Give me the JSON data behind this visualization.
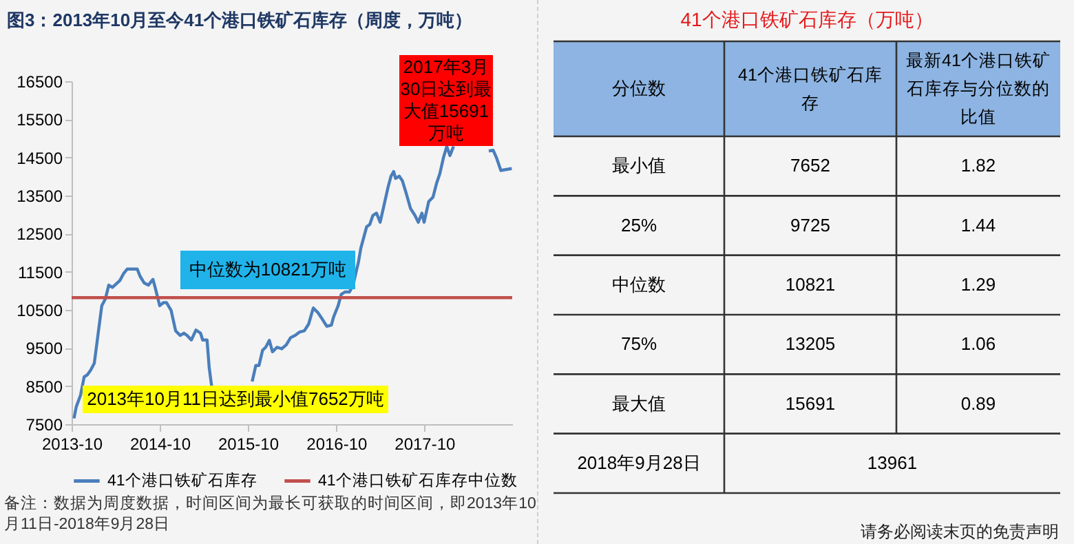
{
  "chart_data": [
    {
      "type": "line",
      "title": "图3：2013年10月至今41个港口铁矿石库存（周度，万吨）",
      "x": [
        "2013-10-11",
        "2013-10-20",
        "2013-11-07",
        "2013-11-22",
        "2013-12-06",
        "2013-12-19",
        "2014-01-03",
        "2014-01-18",
        "2014-02-03",
        "2014-02-18",
        "2014-03-04",
        "2014-03-19",
        "2014-04-19",
        "2014-05-04",
        "2014-05-19",
        "2014-06-11",
        "2014-06-30",
        "2014-07-11",
        "2014-07-28",
        "2014-08-15",
        "2014-09-03",
        "2014-09-12",
        "2014-10-01",
        "2014-10-16",
        "2014-10-29",
        "2014-11-17",
        "2014-12-06",
        "2014-12-25",
        "2015-01-09",
        "2015-01-22",
        "2015-02-09",
        "2015-02-28",
        "2015-03-19",
        "2015-03-28",
        "2015-04-15",
        "2015-04-24",
        "2015-05-04",
        "2015-07-01",
        "2015-09-02",
        "2015-09-12",
        "2015-09-30",
        "2015-10-19",
        "2015-11-03",
        "2015-11-16",
        "2015-12-01",
        "2015-12-14",
        "2015-12-29",
        "2016-01-11",
        "2016-01-30",
        "2016-02-18",
        "2016-03-08",
        "2016-03-26",
        "2016-04-14",
        "2016-05-03",
        "2016-05-22",
        "2016-06-09",
        "2016-06-28",
        "2016-07-17",
        "2016-08-05",
        "2016-08-23",
        "2016-09-11",
        "2016-09-20",
        "2016-10-09",
        "2016-10-22",
        "2016-11-06",
        "2016-11-25",
        "2016-12-10",
        "2016-12-23",
        "2017-01-01",
        "2017-01-11",
        "2017-02-04",
        "2017-02-17",
        "2017-03-02",
        "2017-03-17",
        "2017-04-01",
        "2017-04-14",
        "2017-05-03",
        "2017-05-16",
        "2017-05-27",
        "2017-06-04",
        "2017-06-19",
        "2017-07-02",
        "2017-07-17",
        "2017-08-05",
        "2017-08-23",
        "2017-09-06",
        "2017-09-21",
        "2017-09-30",
        "2017-10-19",
        "2017-11-06",
        "2017-11-21",
        "2017-12-04",
        "2017-12-19",
        "2018-01-02",
        "2018-01-15",
        "2018-01-30",
        "2018-03-15",
        "2018-06-13",
        "2018-06-25",
        "2018-07-13",
        "2018-07-27",
        "2018-08-14",
        "2018-09-28"
      ],
      "series": [
        {
          "name": "41个港口铁矿石库存",
          "color": "#4a7ebb",
          "values": [
            7652,
            7950,
            8260,
            8740,
            8800,
            8920,
            9100,
            9830,
            10610,
            10790,
            11150,
            11090,
            11270,
            11450,
            11570,
            11570,
            11570,
            11390,
            11210,
            11150,
            11300,
            11090,
            10610,
            10690,
            10690,
            10490,
            9950,
            9830,
            9890,
            9830,
            9710,
            9970,
            9890,
            9710,
            9710,
            8980,
            8500,
            null,
            null,
            null,
            null,
            8620,
            9040,
            9040,
            9440,
            9520,
            9700,
            9400,
            9520,
            9480,
            9580,
            9770,
            9830,
            9920,
            9950,
            10130,
            10550,
            10430,
            10250,
            10070,
            10100,
            10310,
            10610,
            10910,
            10970,
            10970,
            11150,
            11510,
            11750,
            12120,
            12680,
            12740,
            12980,
            13040,
            12800,
            13160,
            13700,
            14010,
            14130,
            13950,
            14010,
            13890,
            13580,
            13160,
            12980,
            12800,
            13040,
            12800,
            13340,
            13460,
            13830,
            14070,
            14490,
            14790,
            14550,
            14790,
            null,
            null,
            14670,
            14690,
            14490,
            14160,
            14210
          ]
        },
        {
          "name": "41个港口铁矿石库存中位数",
          "color": "#c0504d",
          "x": [
            "2013-10-01",
            "2018-09-30"
          ],
          "values": [
            10821,
            10821
          ]
        }
      ],
      "xlim": [
        "2013-10-01",
        "2018-09-30"
      ],
      "xticks": [
        "2013-10",
        "2014-10",
        "2015-10",
        "2016-10",
        "2017-10"
      ],
      "ylim": [
        7500,
        16500
      ],
      "yticks": [
        7500,
        8500,
        9500,
        10500,
        11500,
        12500,
        13500,
        14500,
        15500,
        16500
      ],
      "legend": "bottom",
      "annotations": [
        "中位数为10821万吨",
        "2013年10月11日达到最小值7652万吨",
        "2017年3月30日达到最大值15691万吨",
        "备注：数据为周度数据，时间区间为最长可获取的时间区间，即2013年10月11日-2018年9月28日"
      ]
    },
    {
      "type": "other",
      "title": "41个港口铁矿石库存（万吨）",
      "xlabel": "分位数",
      "categories": [
        "最小值",
        "25%",
        "中位数",
        "75%",
        "最大值",
        "2018年9月28日"
      ],
      "series": [
        {
          "name": "41个港口铁矿石库存",
          "values": [
            7652,
            9725,
            10821,
            13205,
            15691,
            13961
          ]
        },
        {
          "name": "最新41个港口铁矿石库存与分位数的比值",
          "values": [
            1.82,
            1.44,
            1.29,
            1.06,
            0.89,
            null
          ]
        }
      ],
      "data_labels": true,
      "annotations": [
        "请务必阅读末页的免责声明"
      ]
    }
  ]
}
